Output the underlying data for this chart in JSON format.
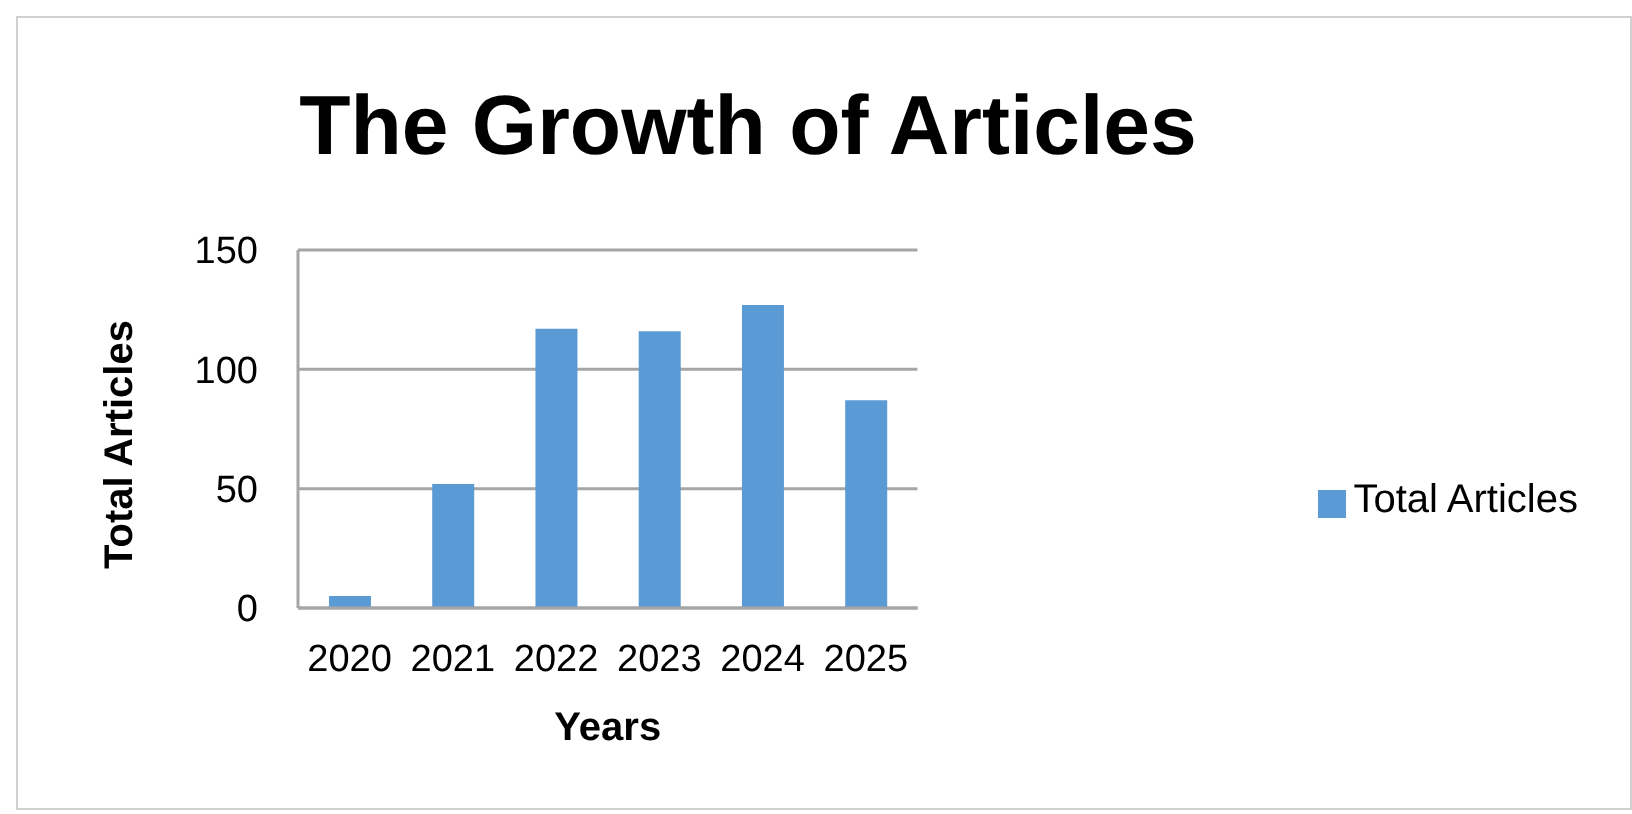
{
  "chart_data": {
    "type": "bar",
    "title": "The Growth of Articles",
    "xlabel": "Years",
    "ylabel": "Total Articles",
    "categories": [
      "2020",
      "2021",
      "2022",
      "2023",
      "2024",
      "2025"
    ],
    "series": [
      {
        "name": "Total Articles",
        "color": "#5b9bd5",
        "values": [
          5,
          52,
          117,
          116,
          127,
          87
        ]
      }
    ],
    "ylim": [
      0,
      150
    ],
    "yticks": [
      0,
      50,
      100,
      150
    ],
    "grid": "y",
    "legend": "right"
  }
}
